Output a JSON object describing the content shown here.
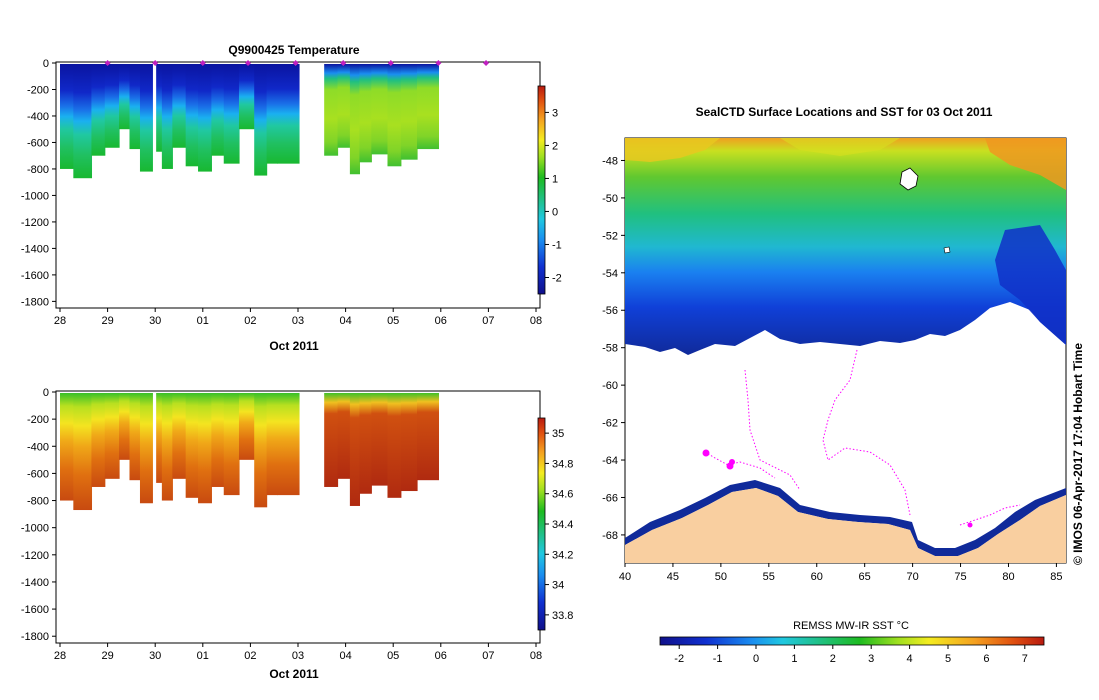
{
  "chart_data": [
    {
      "type": "heatmap",
      "title": "Q9900425  Temperature",
      "xlabel": "Oct 2011",
      "ylabel": "",
      "x_ticks": [
        "28",
        "29",
        "30",
        "01",
        "02",
        "03",
        "04",
        "05",
        "06",
        "07",
        "08"
      ],
      "y_ticks": [
        "0",
        "-200",
        "-400",
        "-600",
        "-800",
        "-1000",
        "-1200",
        "-1400",
        "-1600",
        "-1800"
      ],
      "ylim": [
        -1850,
        0
      ],
      "colorbar": {
        "ticks": [
          "3",
          "2",
          "1",
          "0",
          "-1",
          "-2"
        ],
        "range": [
          -2.5,
          3.8
        ]
      },
      "profiles": [
        {
          "start": 0.0,
          "width": 0.28,
          "depth": 800,
          "thermocline": 300
        },
        {
          "start": 0.28,
          "width": 0.38,
          "depth": 870,
          "thermocline": 330
        },
        {
          "start": 0.66,
          "width": 0.28,
          "depth": 700,
          "thermocline": 310
        },
        {
          "start": 0.94,
          "width": 0.3,
          "depth": 640,
          "thermocline": 320
        },
        {
          "start": 1.24,
          "width": 0.22,
          "depth": 500,
          "thermocline": 300
        },
        {
          "start": 1.46,
          "width": 0.22,
          "depth": 650,
          "thermocline": 320
        },
        {
          "start": 1.68,
          "width": 0.26,
          "depth": 820,
          "thermocline": 330
        },
        {
          "start": 2.02,
          "width": 0.12,
          "depth": 670,
          "thermocline": 300
        },
        {
          "start": 2.14,
          "width": 0.22,
          "depth": 800,
          "thermocline": 310
        },
        {
          "start": 2.36,
          "width": 0.28,
          "depth": 640,
          "thermocline": 320
        },
        {
          "start": 2.64,
          "width": 0.26,
          "depth": 780,
          "thermocline": 330
        },
        {
          "start": 2.9,
          "width": 0.28,
          "depth": 820,
          "thermocline": 310
        },
        {
          "start": 3.18,
          "width": 0.26,
          "depth": 700,
          "thermocline": 300
        },
        {
          "start": 3.44,
          "width": 0.32,
          "depth": 760,
          "thermocline": 320
        },
        {
          "start": 3.76,
          "width": 0.32,
          "depth": 500,
          "thermocline": 300
        },
        {
          "start": 4.08,
          "width": 0.26,
          "depth": 850,
          "thermocline": 320
        },
        {
          "start": 4.34,
          "width": 0.22,
          "depth": 760,
          "thermocline": 310
        },
        {
          "start": 4.56,
          "width": 0.46,
          "depth": 760,
          "thermocline": 300
        },
        {
          "start": 5.55,
          "width": 0.28,
          "depth": 700,
          "thermocline": 90,
          "warm": true
        },
        {
          "start": 5.83,
          "width": 0.26,
          "depth": 640,
          "thermocline": 80,
          "warm": true
        },
        {
          "start": 6.09,
          "width": 0.2,
          "depth": 840,
          "thermocline": 70,
          "warm": true
        },
        {
          "start": 6.29,
          "width": 0.25,
          "depth": 750,
          "thermocline": 60,
          "warm": true
        },
        {
          "start": 6.54,
          "width": 0.34,
          "depth": 690,
          "thermocline": 60,
          "warm": true
        },
        {
          "start": 6.88,
          "width": 0.28,
          "depth": 780,
          "thermocline": 55,
          "warm": true
        },
        {
          "start": 7.16,
          "width": 0.34,
          "depth": 730,
          "thermocline": 55,
          "warm": true
        },
        {
          "start": 7.5,
          "width": 0.45,
          "depth": 650,
          "thermocline": 50,
          "warm": true
        }
      ],
      "surface_markers_days": [
        1.0,
        2.0,
        3.0,
        3.95,
        4.95,
        5.95,
        6.95,
        7.95,
        8.95
      ]
    },
    {
      "type": "heatmap",
      "title": "",
      "xlabel": "Oct 2011",
      "x_ticks": [
        "28",
        "29",
        "30",
        "01",
        "02",
        "03",
        "04",
        "05",
        "06",
        "07",
        "08"
      ],
      "y_ticks": [
        "0",
        "-200",
        "-400",
        "-600",
        "-800",
        "-1000",
        "-1200",
        "-1400",
        "-1600",
        "-1800"
      ],
      "ylim": [
        -1850,
        0
      ],
      "colorbar": {
        "ticks": [
          "35",
          "34.8",
          "34.6",
          "34.4",
          "34.2",
          "34",
          "33.8"
        ],
        "range": [
          33.7,
          35.1
        ]
      }
    },
    {
      "type": "heatmap",
      "title": "SealCTD Surface Locations and SST for 03 Oct 2011",
      "xlabel": "",
      "x_ticks": [
        "40",
        "45",
        "50",
        "55",
        "60",
        "65",
        "70",
        "75",
        "80",
        "85"
      ],
      "y_ticks": [
        "-48",
        "-50",
        "-52",
        "-54",
        "-56",
        "-58",
        "-60",
        "-62",
        "-64",
        "-66",
        "-68"
      ],
      "xlim": [
        40,
        86
      ],
      "ylim": [
        -69.5,
        -46.8
      ],
      "colorbar": {
        "label": "REMSS MW-IR SST °C",
        "ticks": [
          "-2",
          "-1",
          "0",
          "1",
          "2",
          "3",
          "4",
          "5",
          "6",
          "7"
        ],
        "range": [
          -2.5,
          7.5
        ]
      },
      "credit": "© IMOS 06-Apr-2017 17:04 Hobart Time",
      "colors": {
        "land": "#f9cfa0",
        "track": "#ff00ff"
      }
    }
  ]
}
